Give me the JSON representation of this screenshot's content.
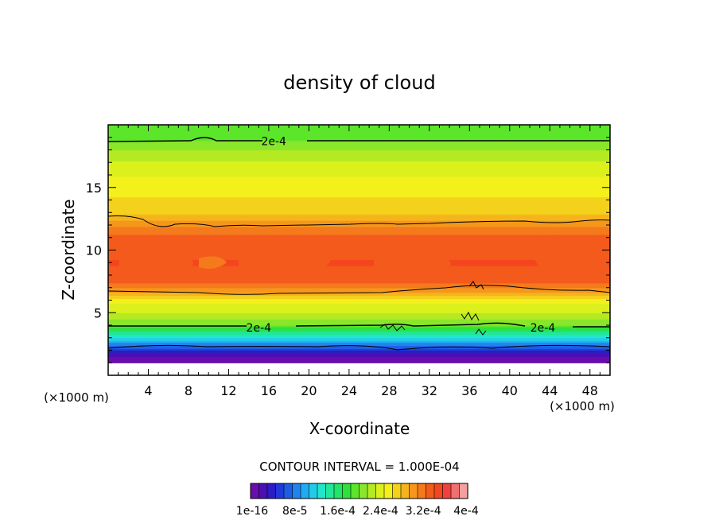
{
  "chart_data": {
    "type": "heatmap",
    "title": "density of cloud",
    "xlabel": "X-coordinate",
    "ylabel": "Z-coordinate",
    "x_unit": "(×1000 m)",
    "x_unit_right": "(×1000 m)",
    "xlim": [
      0,
      50
    ],
    "ylim": [
      0,
      20
    ],
    "x_ticks": [
      4,
      8,
      12,
      16,
      20,
      24,
      28,
      32,
      36,
      40,
      44,
      48
    ],
    "y_ticks": [
      5,
      10,
      15
    ],
    "contour_interval_text": "CONTOUR INTERVAL = 1.000E-04",
    "contour_labels": [
      {
        "text": "2e-4",
        "x": 16.5,
        "z": 18.7
      },
      {
        "text": "2e-4",
        "x": 15.0,
        "z": 3.8
      },
      {
        "text": "2e-4",
        "x": 43.3,
        "z": 3.8
      }
    ],
    "vertical_profile": [
      {
        "z": 1.0,
        "value": 1e-16
      },
      {
        "z": 1.6,
        "value": 2e-05
      },
      {
        "z": 2.0,
        "value": 5e-05
      },
      {
        "z": 2.4,
        "value": 8e-05
      },
      {
        "z": 2.8,
        "value": 0.00011
      },
      {
        "z": 3.4,
        "value": 0.00015
      },
      {
        "z": 4.0,
        "value": 0.0002
      },
      {
        "z": 5.0,
        "value": 0.00023
      },
      {
        "z": 6.0,
        "value": 0.00025
      },
      {
        "z": 6.8,
        "value": 0.0003
      },
      {
        "z": 7.5,
        "value": 0.00033
      },
      {
        "z": 9.0,
        "value": 0.00034
      },
      {
        "z": 11.0,
        "value": 0.00033
      },
      {
        "z": 12.2,
        "value": 0.0003
      },
      {
        "z": 13.0,
        "value": 0.00027
      },
      {
        "z": 14.5,
        "value": 0.00026
      },
      {
        "z": 16.0,
        "value": 0.000245
      },
      {
        "z": 17.5,
        "value": 0.000225
      },
      {
        "z": 18.7,
        "value": 0.0002
      },
      {
        "z": 20.0,
        "value": 0.00019
      }
    ],
    "colorbar": {
      "min": 1e-16,
      "max": 0.0004,
      "tick_labels": [
        "1e-16",
        "8e-5",
        "1.6e-4",
        "2.4e-4",
        "3.2e-4",
        "4e-4"
      ],
      "colors": [
        "#6a0dad",
        "#4b0fb4",
        "#2b1cc4",
        "#1f3ad8",
        "#1f5ce6",
        "#1f84ee",
        "#22aaf2",
        "#22cce8",
        "#22e6cc",
        "#22e69a",
        "#22e466",
        "#2ee23a",
        "#5ce62a",
        "#8ae62a",
        "#b4ea22",
        "#dcf01c",
        "#f4f01c",
        "#f4d21c",
        "#f6b41c",
        "#f6961c",
        "#f47a1c",
        "#f45a1c",
        "#f4461e",
        "#f04040",
        "#f07070",
        "#f4a0a0"
      ]
    }
  }
}
